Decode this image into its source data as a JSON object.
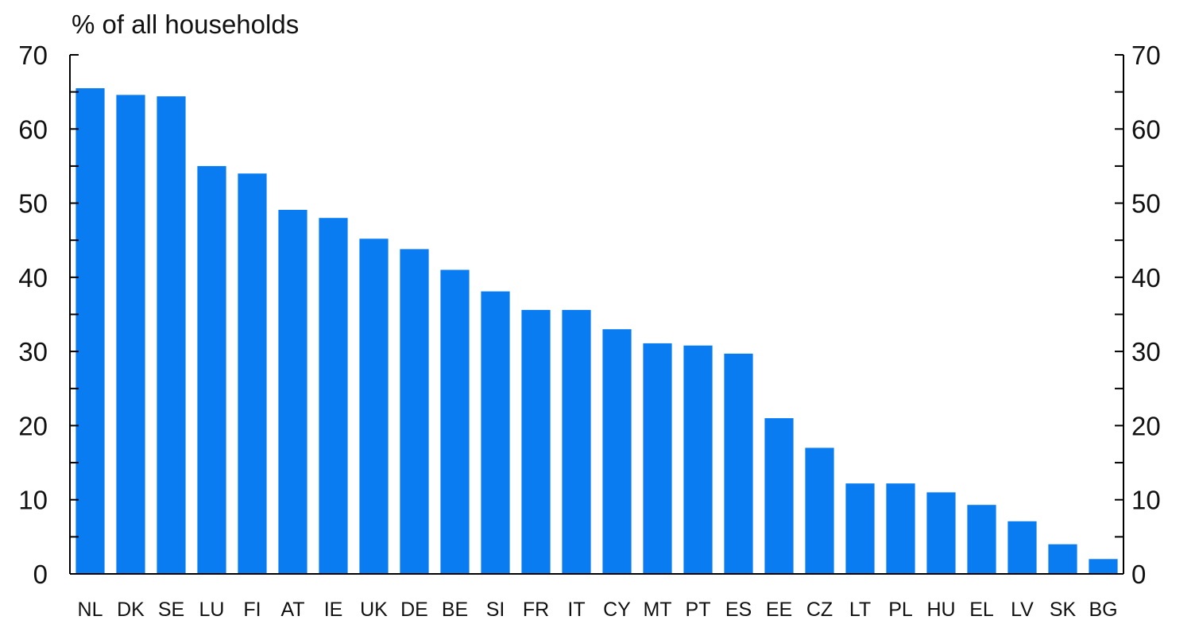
{
  "chart_data": {
    "type": "bar",
    "title": "",
    "ylabel": "% of all households",
    "xlabel": "",
    "ylim": [
      0,
      70
    ],
    "yticks": [
      0,
      10,
      20,
      30,
      40,
      50,
      60,
      70
    ],
    "y_minor_step": 5,
    "right_axis": true,
    "grid": false,
    "bar_color": "#0a7cf2",
    "categories": [
      "NL",
      "DK",
      "SE",
      "LU",
      "FI",
      "AT",
      "IE",
      "UK",
      "DE",
      "BE",
      "SI",
      "FR",
      "IT",
      "CY",
      "MT",
      "PT",
      "ES",
      "EE",
      "CZ",
      "LT",
      "PL",
      "HU",
      "EL",
      "LV",
      "SK",
      "BG"
    ],
    "values": [
      65.5,
      64.6,
      64.4,
      55.0,
      54.0,
      49.1,
      48.0,
      45.2,
      43.8,
      41.0,
      38.1,
      35.6,
      35.6,
      33.0,
      31.1,
      30.8,
      29.7,
      21.0,
      17.0,
      12.2,
      12.2,
      11.0,
      9.3,
      7.1,
      4.0,
      2.0
    ]
  }
}
